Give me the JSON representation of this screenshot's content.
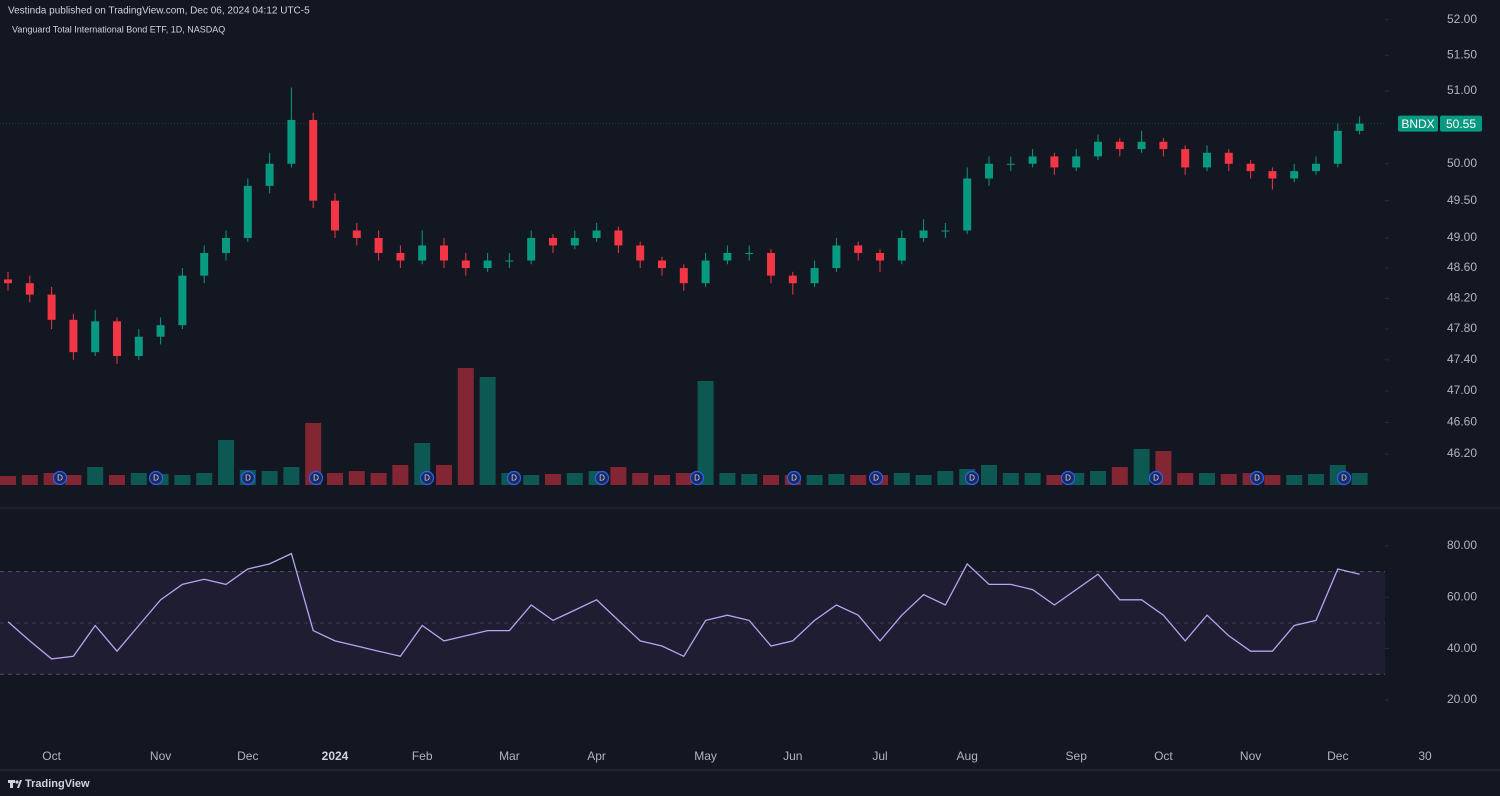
{
  "header": {
    "published": "Vestinda published on TradingView.com, Dec 06, 2024 04:12 UTC-5",
    "symbol_info": "Vanguard Total International Bond ETF, 1D, NASDAQ"
  },
  "footer": {
    "brand": "TradingView"
  },
  "chart_data": [
    {
      "type": "candlestick",
      "categories": [
        null,
        null,
        "Oct",
        null,
        null,
        null,
        null,
        "Nov",
        null,
        null,
        null,
        "Dec",
        null,
        null,
        null,
        "2024",
        null,
        null,
        null,
        "Feb",
        null,
        null,
        null,
        "Mar",
        null,
        null,
        null,
        "Apr",
        null,
        null,
        null,
        null,
        "May",
        null,
        null,
        null,
        "Jun",
        null,
        null,
        null,
        "Jul",
        null,
        null,
        null,
        "Aug",
        null,
        null,
        null,
        null,
        "Sep",
        null,
        null,
        null,
        "Oct",
        null,
        null,
        null,
        "Nov",
        null,
        null,
        null,
        "Dec",
        null,
        null,
        null,
        "30"
      ],
      "open": [
        48.45,
        48.4,
        48.25,
        47.92,
        47.5,
        47.9,
        47.45,
        47.7,
        47.85,
        48.5,
        48.8,
        49.0,
        49.7,
        50.0,
        50.6,
        49.5,
        49.1,
        49.0,
        48.8,
        48.7,
        48.9,
        48.7,
        48.6,
        48.7,
        48.7,
        49.0,
        48.9,
        49.0,
        49.1,
        48.9,
        48.7,
        48.6,
        48.4,
        48.7,
        48.8,
        48.8,
        48.5,
        48.4,
        48.6,
        48.9,
        48.8,
        48.7,
        49.0,
        49.1,
        49.1,
        49.8,
        50.0,
        50.0,
        50.1,
        49.95,
        50.1,
        50.3,
        50.2,
        50.3,
        50.2,
        49.95,
        50.15,
        50.0,
        49.9,
        49.8,
        49.9,
        50.0,
        50.45,
        null,
        null,
        null
      ],
      "high": [
        48.55,
        48.5,
        48.35,
        48.0,
        48.05,
        47.95,
        47.8,
        47.95,
        48.6,
        48.9,
        49.1,
        49.8,
        50.15,
        51.05,
        50.7,
        49.6,
        49.2,
        49.1,
        48.9,
        49.1,
        49.0,
        48.8,
        48.8,
        48.8,
        49.1,
        49.05,
        49.1,
        49.2,
        49.15,
        48.95,
        48.75,
        48.65,
        48.8,
        48.9,
        48.9,
        48.85,
        48.55,
        48.7,
        49.0,
        48.95,
        48.85,
        49.1,
        49.25,
        49.2,
        49.95,
        50.1,
        50.1,
        50.2,
        50.15,
        50.2,
        50.4,
        50.35,
        50.45,
        50.35,
        50.25,
        50.25,
        50.2,
        50.05,
        49.95,
        50.0,
        50.1,
        50.55,
        50.65,
        null,
        null,
        null
      ],
      "low": [
        48.3,
        48.15,
        47.8,
        47.4,
        47.45,
        47.35,
        47.4,
        47.6,
        47.8,
        48.4,
        48.7,
        48.95,
        49.6,
        49.95,
        49.4,
        49.0,
        48.9,
        48.7,
        48.6,
        48.65,
        48.6,
        48.5,
        48.55,
        48.6,
        48.65,
        48.8,
        48.85,
        48.95,
        48.8,
        48.6,
        48.5,
        48.3,
        48.35,
        48.65,
        48.7,
        48.4,
        48.25,
        48.35,
        48.55,
        48.7,
        48.55,
        48.65,
        48.95,
        49.0,
        49.05,
        49.7,
        49.9,
        49.95,
        49.85,
        49.9,
        50.05,
        50.1,
        50.15,
        50.1,
        49.85,
        49.9,
        49.9,
        49.8,
        49.65,
        49.75,
        49.85,
        49.95,
        50.4,
        null,
        null,
        null
      ],
      "close": [
        48.4,
        48.25,
        47.92,
        47.5,
        47.9,
        47.45,
        47.7,
        47.85,
        48.5,
        48.8,
        49.0,
        49.7,
        50.0,
        50.6,
        49.5,
        49.1,
        49.0,
        48.8,
        48.7,
        48.9,
        48.7,
        48.6,
        48.7,
        48.7,
        49.0,
        48.9,
        49.0,
        49.1,
        48.9,
        48.7,
        48.6,
        48.4,
        48.7,
        48.8,
        48.8,
        48.5,
        48.4,
        48.6,
        48.9,
        48.8,
        48.7,
        49.0,
        49.1,
        49.1,
        49.8,
        50.0,
        50.0,
        50.1,
        49.95,
        50.1,
        50.3,
        50.2,
        50.3,
        50.2,
        49.95,
        50.15,
        50.0,
        49.9,
        49.8,
        49.9,
        50.0,
        50.45,
        50.55,
        null,
        null,
        null
      ],
      "up_color": "#089981",
      "down_color": "#f23645",
      "log_scale": true,
      "ylim": [
        45.75,
        52.28
      ],
      "yticks": [
        {
          "value": 52,
          "label": "52.00"
        },
        {
          "value": 51.5,
          "label": "51.50"
        },
        {
          "value": 51,
          "label": "51.00"
        },
        {
          "value": 50,
          "label": "50.00"
        },
        {
          "value": 49.5,
          "label": "49.50"
        },
        {
          "value": 49,
          "label": "49.00"
        },
        {
          "value": 48.6,
          "label": "48.60"
        },
        {
          "value": 48.2,
          "label": "48.20"
        },
        {
          "value": 47.8,
          "label": "47.80"
        },
        {
          "value": 47.4,
          "label": "47.40"
        },
        {
          "value": 47,
          "label": "47.00"
        },
        {
          "value": 46.6,
          "label": "46.60"
        },
        {
          "value": 46.2,
          "label": "46.20"
        }
      ],
      "last_price": {
        "symbol": "BNDX",
        "value": 50.55
      },
      "marker_label": "D"
    },
    {
      "type": "bar",
      "values": [
        9,
        10,
        12,
        10,
        18,
        10,
        12,
        11,
        10,
        12,
        45,
        15,
        14,
        18,
        62,
        12,
        14,
        12,
        20,
        42,
        20,
        117,
        108,
        12,
        10,
        11,
        12,
        14,
        18,
        12,
        10,
        12,
        104,
        12,
        11,
        10,
        10,
        10,
        11,
        10,
        10,
        12,
        10,
        14,
        16,
        20,
        12,
        12,
        10,
        12,
        14,
        18,
        36,
        34,
        12,
        12,
        11,
        12,
        10,
        10,
        11,
        20,
        12,
        null,
        null,
        null
      ],
      "up_color": "#089981",
      "down_color": "#f23645",
      "ylim": [
        0,
        130
      ]
    },
    {
      "type": "line",
      "values": [
        50.5,
        43,
        36,
        37,
        49,
        39,
        49,
        59,
        65,
        67,
        65,
        71,
        73,
        77,
        47,
        43,
        41,
        39,
        37,
        49,
        43,
        45,
        47,
        47,
        57,
        51,
        55,
        59,
        51,
        43,
        41,
        37,
        51,
        53,
        51,
        41,
        43,
        51,
        57,
        53,
        43,
        53,
        61,
        57,
        73,
        65,
        65,
        63,
        57,
        63,
        69,
        59,
        59,
        53,
        43,
        53,
        45,
        39,
        39,
        49,
        51,
        71,
        69,
        null,
        null,
        null
      ],
      "color": "#b7a4ee",
      "ylim": [
        4.4,
        94.0
      ],
      "yticks": [
        {
          "value": 80,
          "label": "80.00"
        },
        {
          "value": 60,
          "label": "60.00"
        },
        {
          "value": 40,
          "label": "40.00"
        },
        {
          "value": 20,
          "label": "20.00"
        }
      ],
      "band": [
        30,
        70
      ],
      "midline": 50
    }
  ]
}
